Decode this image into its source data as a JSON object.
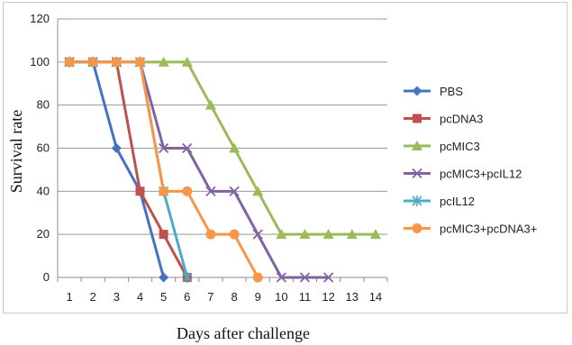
{
  "chart_data": {
    "type": "line",
    "title": "",
    "xlabel": "Days after challenge",
    "ylabel": "Survival rate",
    "x": [
      1,
      2,
      3,
      4,
      5,
      6,
      7,
      8,
      9,
      10,
      11,
      12,
      13,
      14
    ],
    "xlim": [
      1,
      14
    ],
    "ylim": [
      0,
      120
    ],
    "yticks": [
      0,
      20,
      40,
      60,
      80,
      100,
      120
    ],
    "grid": true,
    "legend_position": "right",
    "series": [
      {
        "name": "PBS",
        "color": "#4472C4",
        "marker": "diamond",
        "points": [
          [
            1,
            100
          ],
          [
            2,
            100
          ],
          [
            3,
            60
          ],
          [
            4,
            40
          ],
          [
            5,
            0
          ]
        ]
      },
      {
        "name": "pcDNA3",
        "color": "#C0504D",
        "marker": "square",
        "points": [
          [
            1,
            100
          ],
          [
            2,
            100
          ],
          [
            3,
            100
          ],
          [
            4,
            40
          ],
          [
            5,
            20
          ],
          [
            6,
            0
          ]
        ]
      },
      {
        "name": "pcMIC3",
        "color": "#9BBB59",
        "marker": "triangle",
        "points": [
          [
            1,
            100
          ],
          [
            2,
            100
          ],
          [
            3,
            100
          ],
          [
            4,
            100
          ],
          [
            5,
            100
          ],
          [
            6,
            100
          ],
          [
            7,
            80
          ],
          [
            8,
            60
          ],
          [
            9,
            40
          ],
          [
            10,
            20
          ],
          [
            11,
            20
          ],
          [
            12,
            20
          ],
          [
            13,
            20
          ],
          [
            14,
            20
          ]
        ]
      },
      {
        "name": "pcMIC3+pcIL12",
        "color": "#8064A2",
        "marker": "x",
        "points": [
          [
            1,
            100
          ],
          [
            2,
            100
          ],
          [
            3,
            100
          ],
          [
            4,
            100
          ],
          [
            5,
            60
          ],
          [
            6,
            60
          ],
          [
            7,
            40
          ],
          [
            8,
            40
          ],
          [
            9,
            20
          ],
          [
            10,
            0
          ],
          [
            11,
            0
          ],
          [
            12,
            0
          ]
        ]
      },
      {
        "name": "pcIL12",
        "color": "#4BACC6",
        "marker": "star",
        "points": [
          [
            1,
            100
          ],
          [
            2,
            100
          ],
          [
            3,
            100
          ],
          [
            4,
            100
          ],
          [
            5,
            40
          ],
          [
            6,
            0
          ]
        ]
      },
      {
        "name": "pcMIC3+pcDNA3+",
        "color": "#F79646",
        "marker": "circle",
        "points": [
          [
            1,
            100
          ],
          [
            2,
            100
          ],
          [
            3,
            100
          ],
          [
            4,
            100
          ],
          [
            5,
            40
          ],
          [
            6,
            40
          ],
          [
            7,
            20
          ],
          [
            8,
            20
          ],
          [
            9,
            0
          ]
        ]
      }
    ]
  }
}
